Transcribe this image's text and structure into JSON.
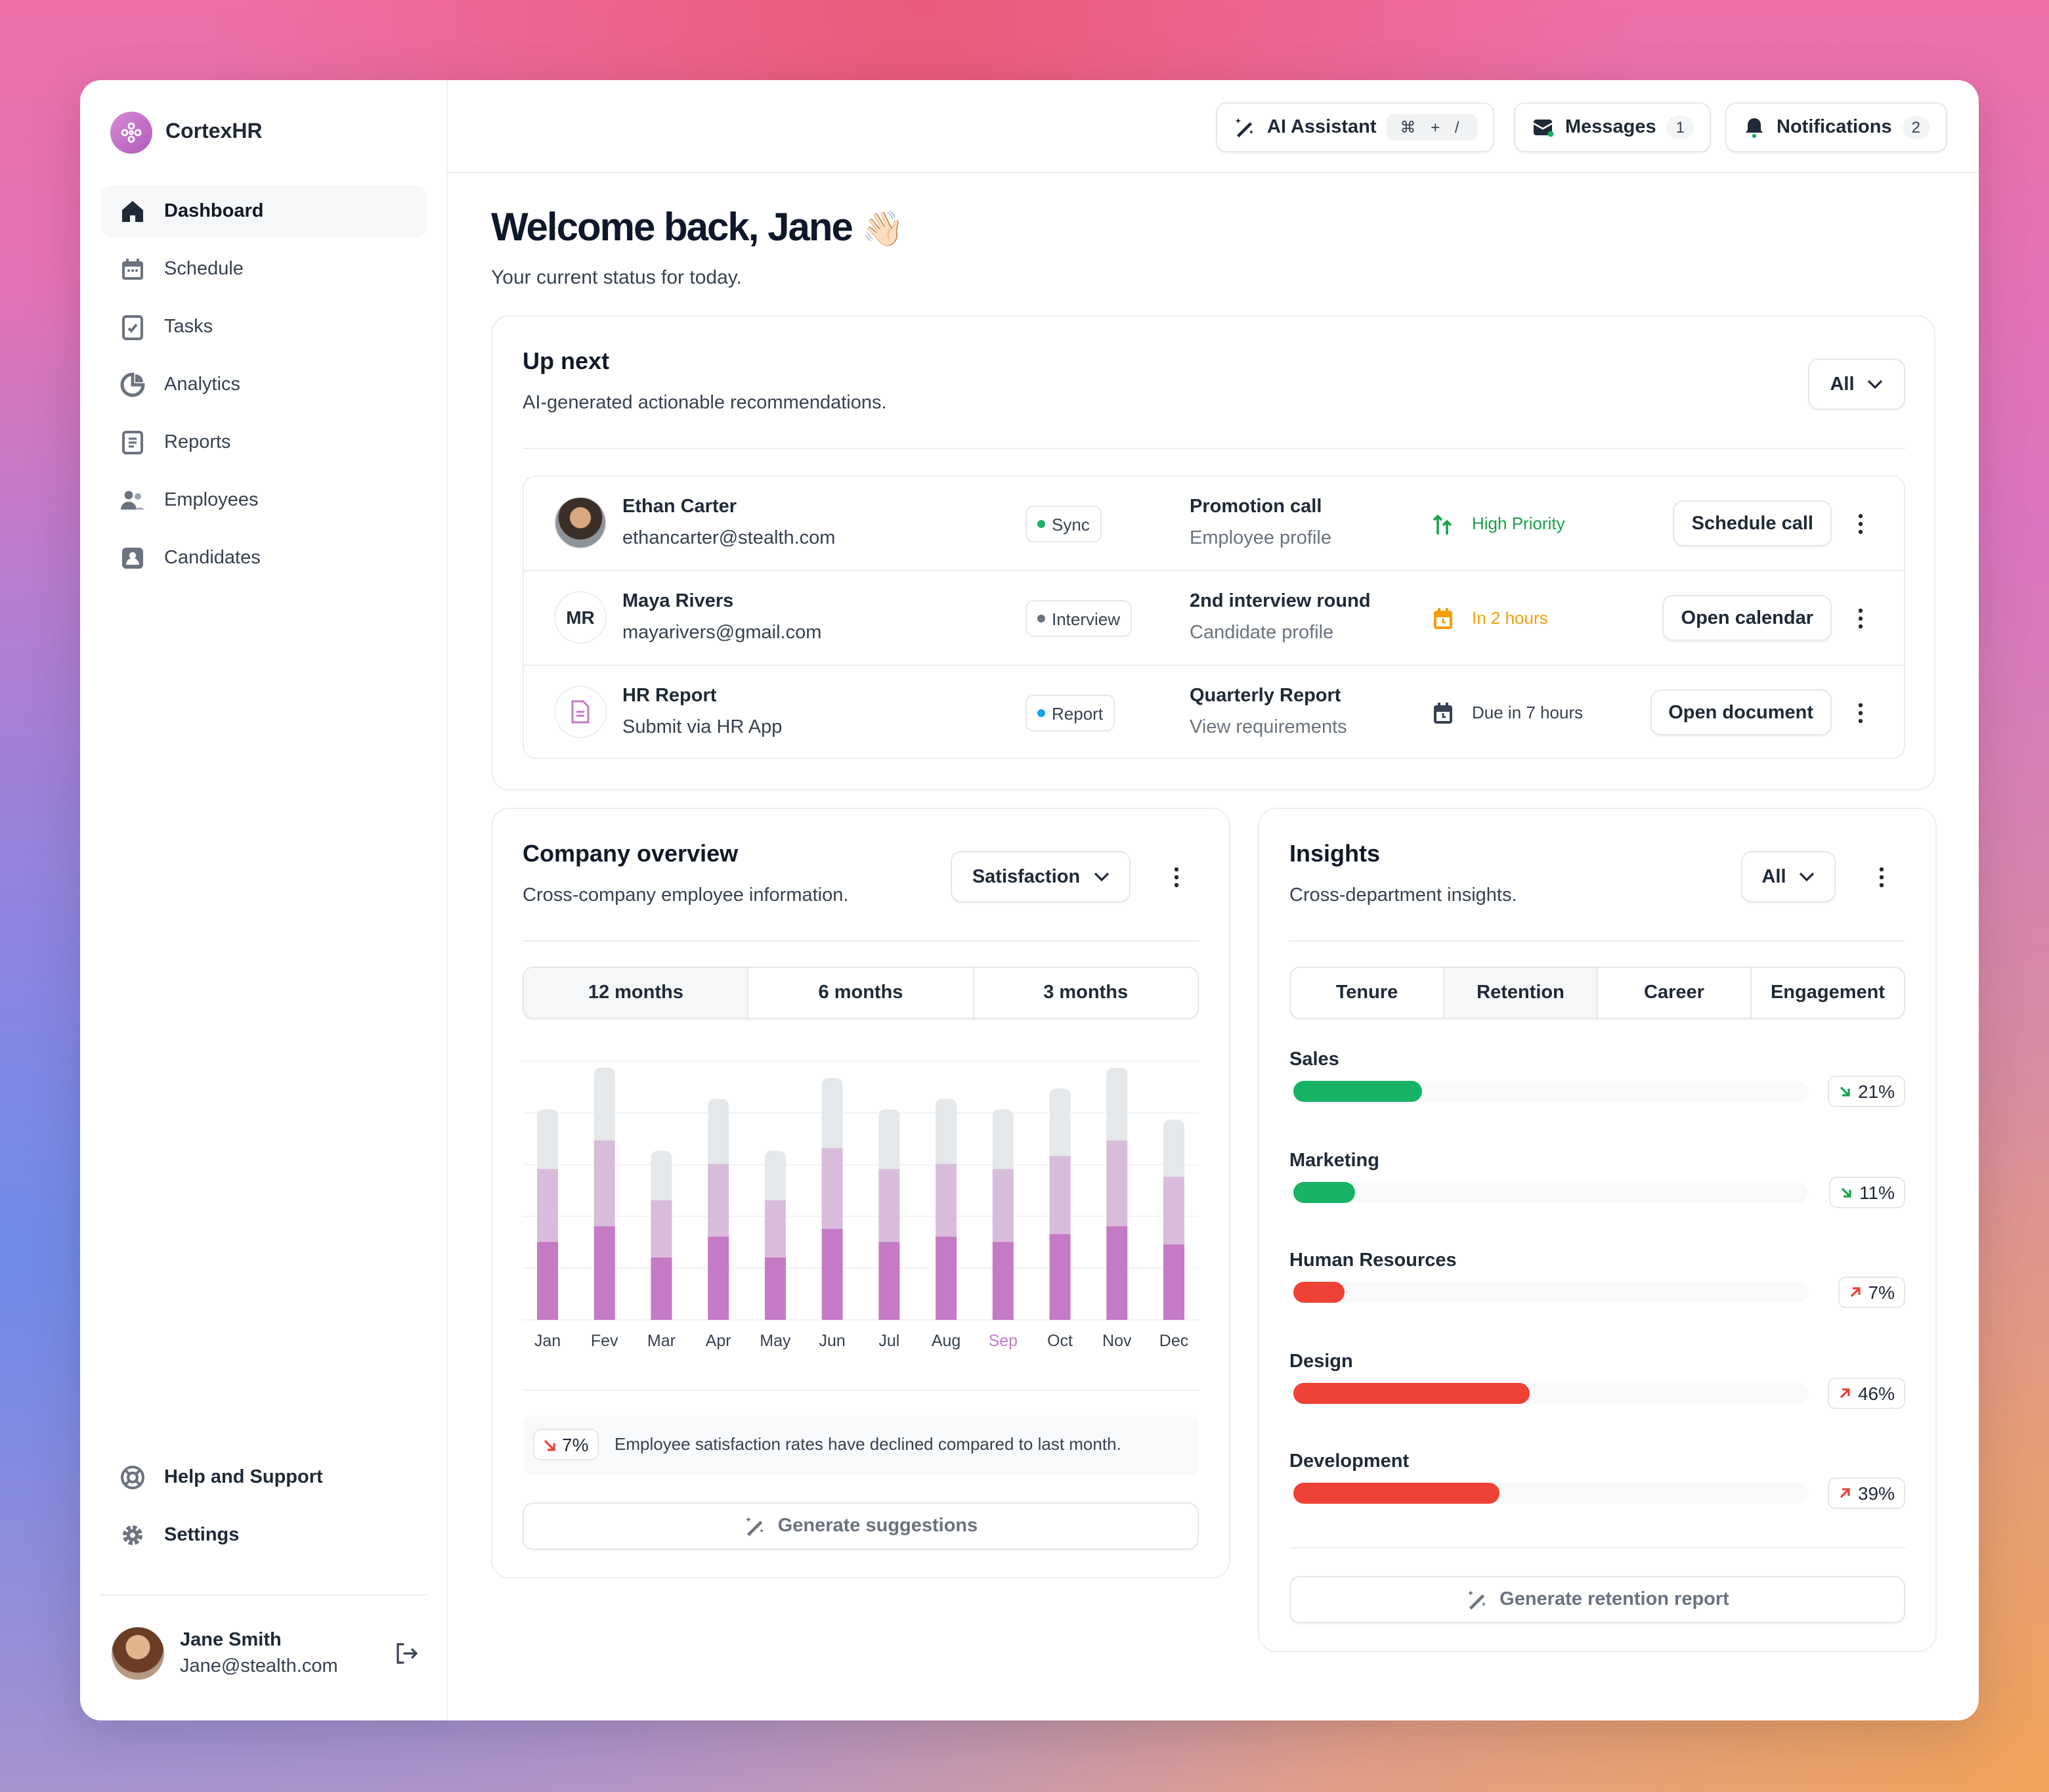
{
  "app": {
    "name": "CortexHR",
    "accent": "#c47ac4"
  },
  "sidebar": {
    "items": [
      {
        "label": "Dashboard",
        "icon": "home-icon",
        "active": true
      },
      {
        "label": "Schedule",
        "icon": "calendar-icon"
      },
      {
        "label": "Tasks",
        "icon": "checklist-icon"
      },
      {
        "label": "Analytics",
        "icon": "pie-chart-icon"
      },
      {
        "label": "Reports",
        "icon": "document-icon"
      },
      {
        "label": "Employees",
        "icon": "users-icon"
      },
      {
        "label": "Candidates",
        "icon": "contact-card-icon"
      }
    ],
    "bottom": [
      {
        "label": "Help and Support",
        "icon": "lifebuoy-icon"
      },
      {
        "label": "Settings",
        "icon": "gear-icon"
      }
    ],
    "user": {
      "name": "Jane Smith",
      "email": "Jane@stealth.com"
    }
  },
  "header": {
    "ai": {
      "label": "AI Assistant",
      "shortcut": "⌘ + /"
    },
    "messages": {
      "label": "Messages",
      "count": "1"
    },
    "notifications": {
      "label": "Notifications",
      "count": "2"
    }
  },
  "welcome": {
    "title": "Welcome back, Jane",
    "emoji": "👋🏻",
    "subtitle": "Your current status for today."
  },
  "upnext": {
    "title": "Up next",
    "subtitle": "AI-generated actionable recommendations.",
    "filter": "All",
    "rows": [
      {
        "name": "Ethan Carter",
        "email": "ethancarter@stealth.com",
        "badge": "Sync",
        "badge_color": "#16b364",
        "title": "Promotion call",
        "subtitle": "Employee profile",
        "status": "High Priority",
        "status_color": "#16a34a",
        "status_icon": "arrows-up-icon",
        "action": "Schedule call"
      },
      {
        "name": "Maya Rivers",
        "initials": "MR",
        "email": "mayarivers@gmail.com",
        "badge": "Interview",
        "badge_color": "#6b7280",
        "title": "2nd interview round",
        "subtitle": "Candidate profile",
        "status": "In 2 hours",
        "status_color": "#f59e0b",
        "status_icon": "calendar-clock-icon",
        "action": "Open calendar"
      },
      {
        "name": "HR Report",
        "email": "Submit via HR App",
        "badge": "Report",
        "badge_color": "#0ea5e9",
        "title": "Quarterly Report",
        "subtitle": "View requirements",
        "status": "Due in 7 hours",
        "status_color": "#374151",
        "status_icon": "calendar-clock-icon",
        "action": "Open document"
      }
    ]
  },
  "overview": {
    "title": "Company overview",
    "subtitle": "Cross-company employee information.",
    "metric": "Satisfaction",
    "ranges": [
      "12 months",
      "6 months",
      "3 months"
    ],
    "active_range": "12 months",
    "note_change": "7%",
    "note": "Employee satisfaction rates have declined compared to last month.",
    "generate": "Generate suggestions"
  },
  "chart_data": {
    "type": "bar",
    "stacked": true,
    "grid": true,
    "categories": [
      "Jan",
      "Fev",
      "Mar",
      "Apr",
      "May",
      "Jun",
      "Jul",
      "Aug",
      "Sep",
      "Oct",
      "Nov",
      "Dec"
    ],
    "highlight": "Sep",
    "colors": [
      "#c47ac4",
      "#d9bcdc",
      "#e5e8eb"
    ],
    "series": [
      {
        "values": [
          30,
          36,
          24,
          32,
          24,
          35,
          30,
          32,
          30,
          33,
          36,
          29
        ]
      },
      {
        "values": [
          28,
          33,
          22,
          28,
          22,
          31,
          28,
          28,
          28,
          30,
          33,
          26
        ]
      },
      {
        "values": [
          23,
          28,
          19,
          25,
          19,
          27,
          23,
          25,
          23,
          26,
          28,
          22
        ]
      }
    ],
    "ylim": [
      0,
      100
    ]
  },
  "insights": {
    "title": "Insights",
    "subtitle": "Cross-department insights.",
    "filter": "All",
    "tabs": [
      "Tenure",
      "Retention",
      "Career",
      "Engagement"
    ],
    "active_tab": "Retention",
    "departments": [
      {
        "name": "Sales",
        "change": "21%",
        "direction": "down",
        "fill": 0.25,
        "color": "#16b364"
      },
      {
        "name": "Marketing",
        "change": "11%",
        "direction": "down",
        "fill": 0.12,
        "color": "#16b364"
      },
      {
        "name": "Human Resources",
        "change": "7%",
        "direction": "up",
        "fill": 0.1,
        "color": "#ef4136"
      },
      {
        "name": "Design",
        "change": "46%",
        "direction": "up",
        "fill": 0.46,
        "color": "#ef4136"
      },
      {
        "name": "Development",
        "change": "39%",
        "direction": "up",
        "fill": 0.4,
        "color": "#ef4136"
      }
    ],
    "generate": "Generate retention report"
  }
}
